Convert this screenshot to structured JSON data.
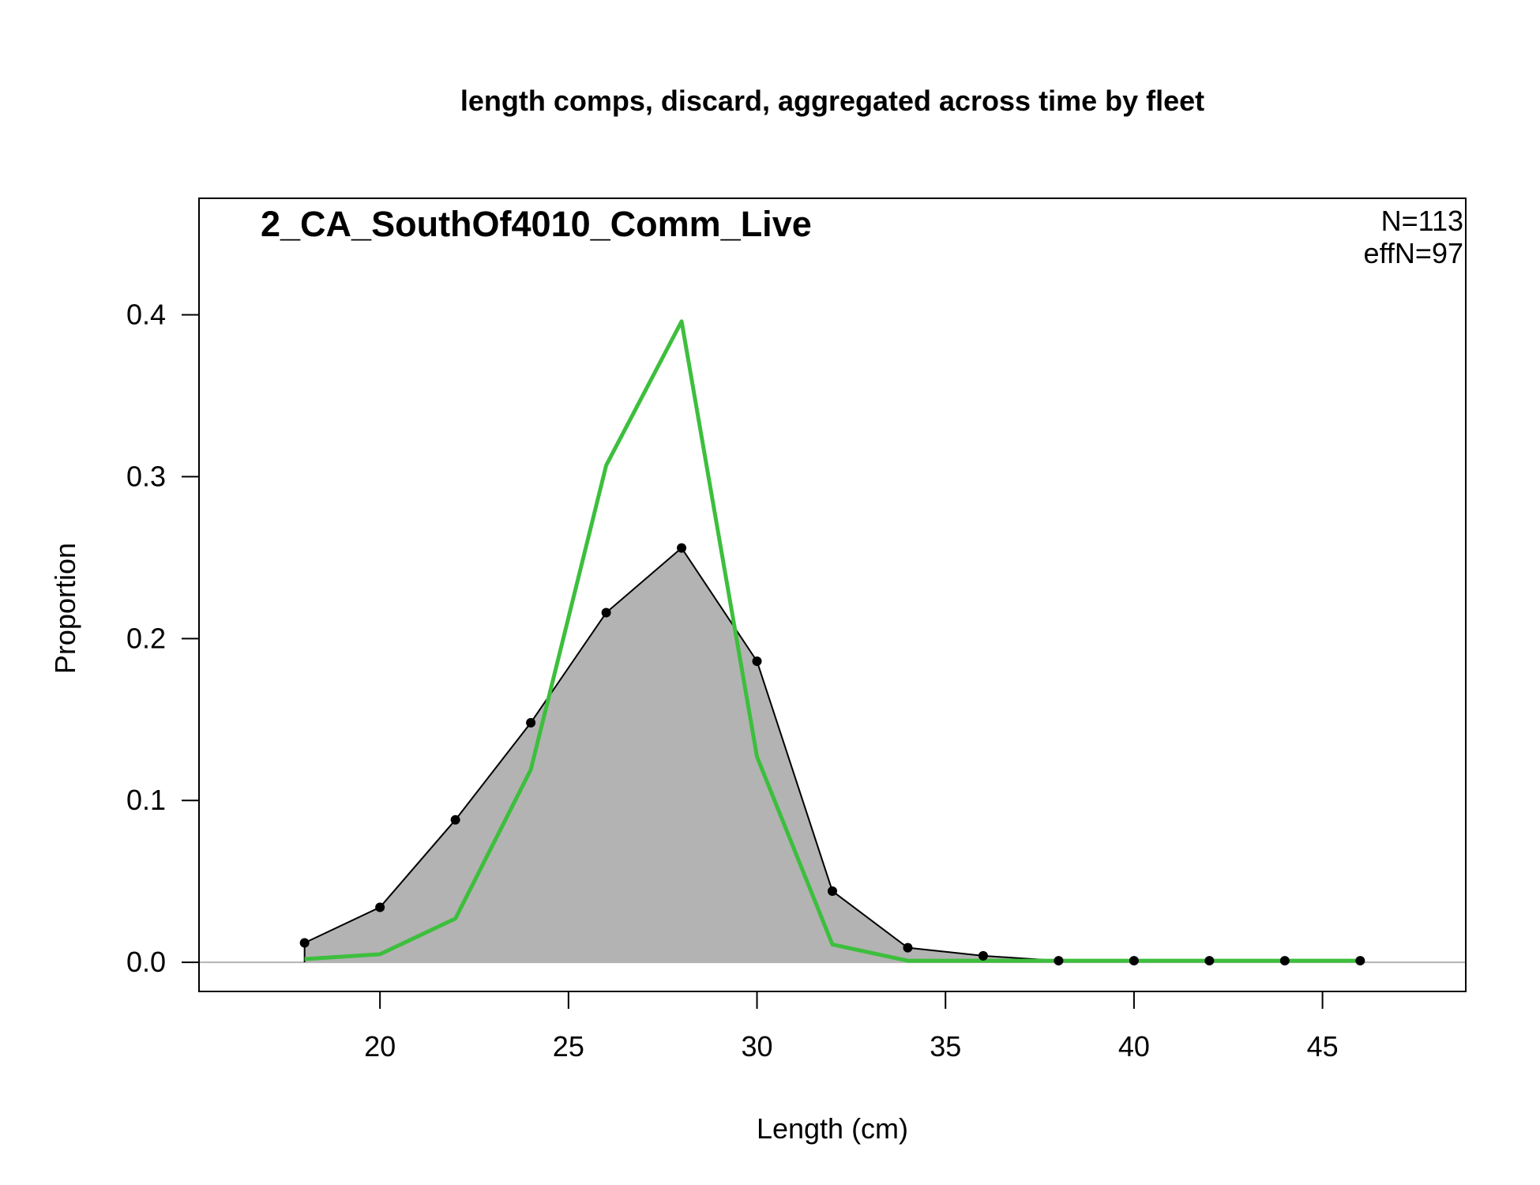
{
  "chart_data": {
    "type": "area",
    "title": "length comps, discard, aggregated across time by fleet",
    "panel_label": "2_CA_SouthOf4010_Comm_Live",
    "annotations": [
      "N=113",
      "effN=97"
    ],
    "xlabel": "Length (cm)",
    "ylabel": "Proportion",
    "xlim": [
      15.2,
      48.8
    ],
    "ylim": [
      -0.018,
      0.472
    ],
    "x_ticks": [
      20,
      25,
      30,
      35,
      40,
      45
    ],
    "y_ticks": [
      0.0,
      0.1,
      0.2,
      0.3,
      0.4
    ],
    "x_tick_labels": [
      "20",
      "25",
      "30",
      "35",
      "40",
      "45"
    ],
    "y_tick_labels": [
      "0.0",
      "0.1",
      "0.2",
      "0.3",
      "0.4"
    ],
    "grid": false,
    "x": [
      18,
      20,
      22,
      24,
      26,
      28,
      30,
      32,
      34,
      36,
      38,
      40,
      42,
      44,
      46
    ],
    "series": [
      {
        "role": "observed",
        "style": "filled area with points",
        "values": [
          0.012,
          0.034,
          0.088,
          0.148,
          0.216,
          0.256,
          0.186,
          0.044,
          0.009,
          0.004,
          0.001,
          0.001,
          0.001,
          0.001,
          0.001
        ]
      },
      {
        "role": "expected",
        "style": "line",
        "values": [
          0.002,
          0.005,
          0.027,
          0.119,
          0.307,
          0.396,
          0.127,
          0.011,
          0.001,
          0.001,
          0.001,
          0.001,
          0.001,
          0.001,
          0.001
        ]
      }
    ],
    "colors": {
      "observed_fill": "#b3b3b3",
      "observed_line": "#000000",
      "expected_line": "#3dbf3d",
      "zero_line": "#b3b3b3",
      "frame": "#000000"
    }
  }
}
